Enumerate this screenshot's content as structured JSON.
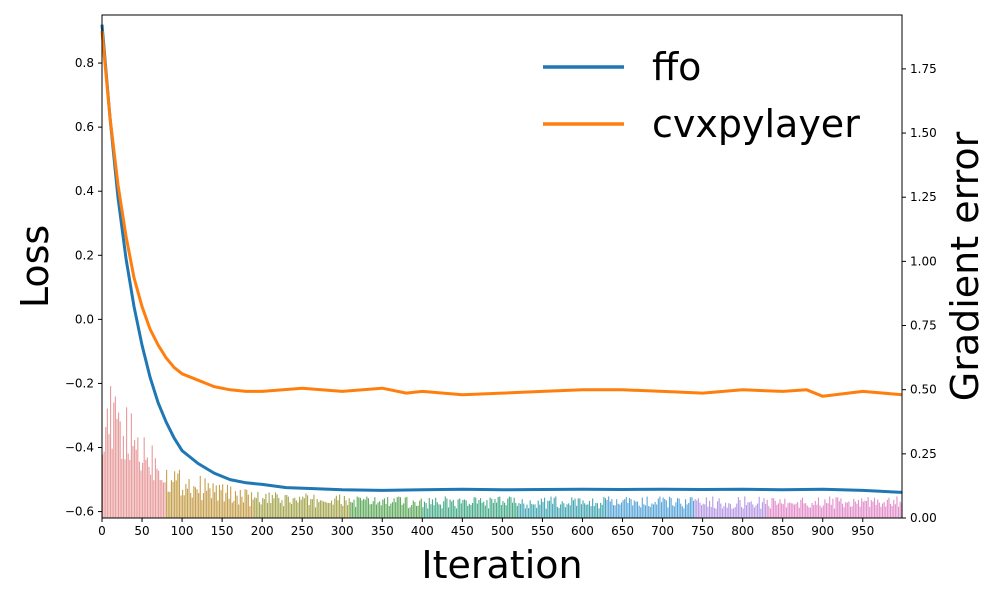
{
  "chart_data": {
    "type": "line",
    "xlabel": "Iteration",
    "ylabel": "Loss",
    "y2label": "Gradient error",
    "xlim": [
      0,
      999
    ],
    "ylim": [
      -0.62,
      0.95
    ],
    "y2lim": [
      0,
      1.96
    ],
    "x_ticks": [
      0,
      50,
      100,
      150,
      200,
      250,
      300,
      350,
      400,
      450,
      500,
      550,
      600,
      650,
      700,
      750,
      800,
      850,
      900,
      950
    ],
    "y_ticks": [
      -0.6,
      -0.4,
      -0.2,
      0.0,
      0.2,
      0.4,
      0.6,
      0.8
    ],
    "y_tick_labels": [
      "−0.6",
      "−0.4",
      "−0.2",
      "0.0",
      "0.2",
      "0.4",
      "0.6",
      "0.8"
    ],
    "y2_ticks": [
      0.0,
      0.25,
      0.5,
      0.75,
      1.0,
      1.25,
      1.5,
      1.75
    ],
    "y2_tick_labels": [
      "0.00",
      "0.25",
      "0.50",
      "0.75",
      "1.00",
      "1.25",
      "1.50",
      "1.75"
    ],
    "legend_position": "top-right",
    "grid": false,
    "series": [
      {
        "name": "ffo",
        "color": "#1f77b4",
        "axis": "left",
        "x": [
          0,
          10,
          20,
          30,
          40,
          50,
          60,
          70,
          80,
          90,
          100,
          120,
          140,
          160,
          180,
          200,
          230,
          260,
          300,
          350,
          400,
          450,
          500,
          550,
          600,
          650,
          700,
          750,
          800,
          850,
          900,
          950,
          999
        ],
        "y": [
          0.92,
          0.63,
          0.38,
          0.19,
          0.04,
          -0.08,
          -0.18,
          -0.26,
          -0.32,
          -0.37,
          -0.41,
          -0.45,
          -0.48,
          -0.5,
          -0.51,
          -0.515,
          -0.525,
          -0.528,
          -0.532,
          -0.534,
          -0.532,
          -0.53,
          -0.532,
          -0.531,
          -0.53,
          -0.531,
          -0.53,
          -0.531,
          -0.53,
          -0.532,
          -0.53,
          -0.534,
          -0.54
        ]
      },
      {
        "name": "cvxpylayer",
        "color": "#ff7f0e",
        "axis": "left",
        "x": [
          0,
          10,
          20,
          30,
          40,
          50,
          60,
          70,
          80,
          90,
          100,
          120,
          140,
          160,
          180,
          200,
          250,
          300,
          350,
          380,
          400,
          450,
          500,
          550,
          600,
          650,
          700,
          750,
          800,
          850,
          880,
          900,
          950,
          999
        ],
        "y": [
          0.9,
          0.63,
          0.42,
          0.26,
          0.13,
          0.04,
          -0.03,
          -0.08,
          -0.12,
          -0.15,
          -0.17,
          -0.19,
          -0.21,
          -0.22,
          -0.225,
          -0.225,
          -0.215,
          -0.225,
          -0.215,
          -0.23,
          -0.225,
          -0.235,
          -0.23,
          -0.225,
          -0.22,
          -0.22,
          -0.225,
          -0.23,
          -0.22,
          -0.225,
          -0.22,
          -0.24,
          -0.225,
          -0.235
        ]
      }
    ],
    "bars": {
      "axis": "right",
      "type": "bar",
      "segments": [
        {
          "x_start": 0,
          "x_end": 79,
          "color": "#e89b9b",
          "start_value": 0.45,
          "end_value": 0.2
        },
        {
          "x_start": 80,
          "x_end": 189,
          "color": "#c7a04d",
          "start_value": 0.17,
          "end_value": 0.08
        },
        {
          "x_start": 190,
          "x_end": 309,
          "color": "#a7a852",
          "start_value": 0.08,
          "end_value": 0.07
        },
        {
          "x_start": 310,
          "x_end": 399,
          "color": "#62ac5f",
          "start_value": 0.07,
          "end_value": 0.065
        },
        {
          "x_start": 400,
          "x_end": 519,
          "color": "#48ac8c",
          "start_value": 0.065,
          "end_value": 0.065
        },
        {
          "x_start": 520,
          "x_end": 629,
          "color": "#46a8b4",
          "start_value": 0.065,
          "end_value": 0.065
        },
        {
          "x_start": 630,
          "x_end": 739,
          "color": "#5aa6d9",
          "start_value": 0.065,
          "end_value": 0.065
        },
        {
          "x_start": 740,
          "x_end": 829,
          "color": "#b79be6",
          "start_value": 0.065,
          "end_value": 0.065
        },
        {
          "x_start": 830,
          "x_end": 999,
          "color": "#e38fcb",
          "start_value": 0.065,
          "end_value": 0.065
        }
      ]
    }
  }
}
